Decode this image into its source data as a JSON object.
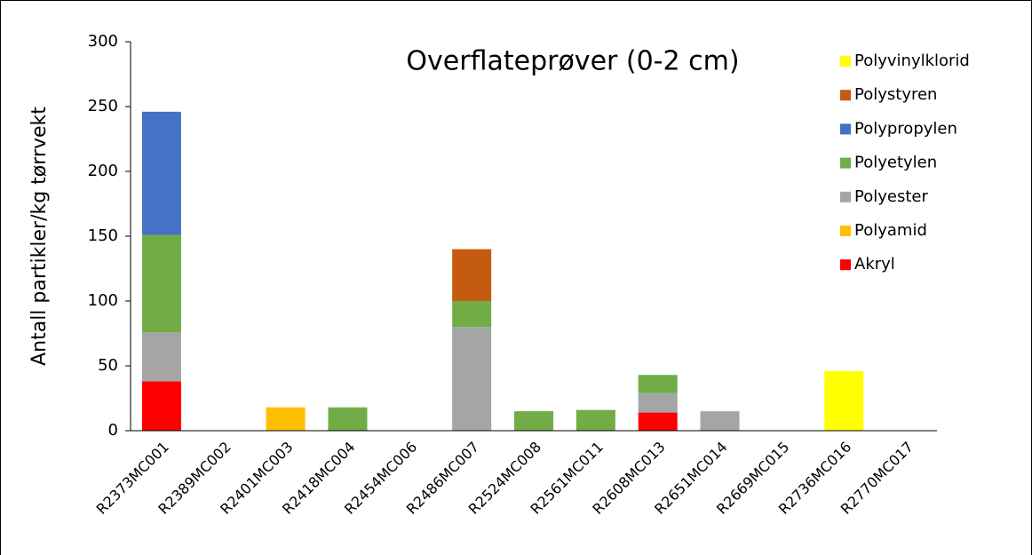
{
  "chart_data": {
    "type": "stacked_bar",
    "title": "Overflateprøver (0-2 cm)",
    "y_label": "Antall partikler/kg tørrvekt",
    "categories": [
      "R2373MC001",
      "R2389MC002",
      "R2401MC003",
      "R2418MC004",
      "R2454MC006",
      "R2486MC007",
      "R2524MC008",
      "R2561MC011",
      "R2608MC013",
      "R2651MC014",
      "R2669MC015",
      "R2736MC016",
      "R2770MC017"
    ],
    "series": [
      {
        "name": "Akryl",
        "color": "#ff0000",
        "values": [
          38,
          0,
          0,
          0,
          0,
          0,
          0,
          0,
          14,
          0,
          0,
          0,
          0
        ]
      },
      {
        "name": "Polyamid",
        "color": "#ffc000",
        "values": [
          0,
          0,
          18,
          0,
          0,
          0,
          0,
          0,
          0,
          0,
          0,
          0,
          0
        ]
      },
      {
        "name": "Polyester",
        "color": "#a5a5a5",
        "values": [
          38,
          0,
          0,
          0,
          0,
          80,
          0,
          0,
          15,
          15,
          0,
          0,
          0
        ]
      },
      {
        "name": "Polyetylen",
        "color": "#70ad47",
        "values": [
          75,
          0,
          0,
          18,
          0,
          20,
          15,
          16,
          14,
          0,
          0,
          0,
          0
        ]
      },
      {
        "name": "Polypropylen",
        "color": "#4472c4",
        "values": [
          95,
          0,
          0,
          0,
          0,
          0,
          0,
          0,
          0,
          0,
          0,
          0,
          0
        ]
      },
      {
        "name": "Polystyren",
        "color": "#c55a11",
        "values": [
          0,
          0,
          0,
          0,
          0,
          40,
          0,
          0,
          0,
          0,
          0,
          0,
          0
        ]
      },
      {
        "name": "Polyvinylklorid",
        "color": "#ffff00",
        "values": [
          0,
          0,
          0,
          0,
          0,
          0,
          0,
          0,
          0,
          0,
          0,
          46,
          0
        ]
      }
    ],
    "ylim": [
      0,
      300
    ],
    "yticks": [
      0,
      50,
      100,
      150,
      200,
      250,
      300
    ],
    "legend": "right"
  }
}
